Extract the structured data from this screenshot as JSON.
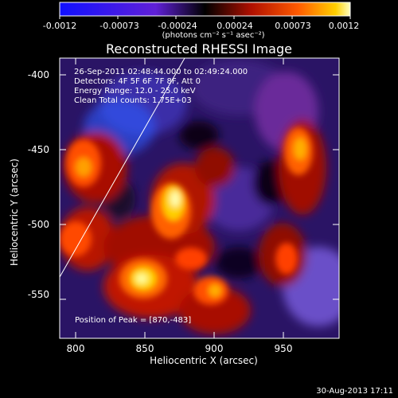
{
  "colorbar": {
    "ticks": [
      "-0.0012",
      "-0.00073",
      "-0.00024",
      "0.00024",
      "0.00073",
      "0.0012"
    ],
    "unit": "(photons cm⁻² s⁻¹ asec⁻²)"
  },
  "plot": {
    "title": "Reconstructed RHESSI Image",
    "info_lines": [
      "26-Sep-2011 02:48:44.000 to 02:49:24.000",
      "Detectors: 4F 5F 6F 7F 8F, Att 0",
      "Energy Range: 12.0 - 25.0 keV",
      "Clean     Total counts: 1.75E+03"
    ],
    "peak_text": "Position of Peak = [870,-483]",
    "xlabel": "Heliocentric X (arcsec)",
    "ylabel": "Heliocentric Y (arcsec)",
    "x_ticks": [
      "800",
      "850",
      "900",
      "950"
    ],
    "y_ticks": [
      "-400",
      "-450",
      "-500",
      "-550"
    ]
  },
  "footer": {
    "date": "30-Aug-2013 17:11"
  }
}
